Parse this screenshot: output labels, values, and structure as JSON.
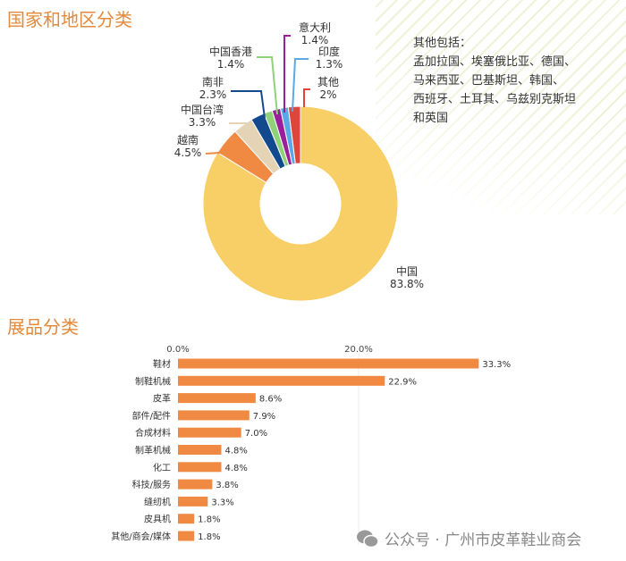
{
  "chart_data": [
    {
      "type": "pie",
      "title": "国家和地区分类",
      "donut": true,
      "slices": [
        {
          "label": "中国",
          "value": 83.8,
          "text": "83.8%",
          "color": "#f8cf66"
        },
        {
          "label": "越南",
          "value": 4.5,
          "text": "4.5%",
          "color": "#f08a43"
        },
        {
          "label": "中国台湾",
          "value": 3.3,
          "text": "3.3%",
          "color": "#e5d3b5"
        },
        {
          "label": "南非",
          "value": 2.3,
          "text": "2.3%",
          "color": "#134a8e"
        },
        {
          "label": "中国香港",
          "value": 1.4,
          "text": "1.4%",
          "color": "#8fd27a"
        },
        {
          "label": "意大利",
          "value": 1.4,
          "text": "1.4%",
          "color": "#9b1f9a"
        },
        {
          "label": "印度",
          "value": 1.3,
          "text": "1.3%",
          "color": "#5aa9e6"
        },
        {
          "label": "其他",
          "value": 2,
          "text": "2%",
          "color": "#e0453c"
        }
      ],
      "note": {
        "title": "其他包括：",
        "lines": [
          "孟加拉国、埃塞俄比亚、德国、",
          "马来西亚、巴基斯坦、韩国、",
          "西班牙、土耳其、乌兹别克斯坦",
          "和英国"
        ]
      }
    },
    {
      "type": "bar",
      "orientation": "horizontal",
      "title": "展品分类",
      "xticks": [
        "0.0%",
        "20.0%"
      ],
      "xlim": [
        0,
        33.3
      ],
      "color": "#f08a43",
      "categories": [
        "鞋材",
        "制鞋机械",
        "皮革",
        "部件/配件",
        "合成材料",
        "制革机械",
        "化工",
        "科技/服务",
        "缝纫机",
        "皮具机",
        "其他/商会/媒体"
      ],
      "values": [
        33.3,
        22.9,
        8.6,
        7.9,
        7.0,
        4.8,
        4.8,
        3.8,
        3.3,
        1.8,
        1.8
      ],
      "labels": [
        "33.3%",
        "22.9%",
        "8.6%",
        "7.9%",
        "7.0%",
        "4.8%",
        "4.8%",
        "3.8%",
        "3.3%",
        "1.8%",
        "1.8%"
      ]
    }
  ],
  "watermark": "公众号 · 广州市皮革鞋业商会"
}
